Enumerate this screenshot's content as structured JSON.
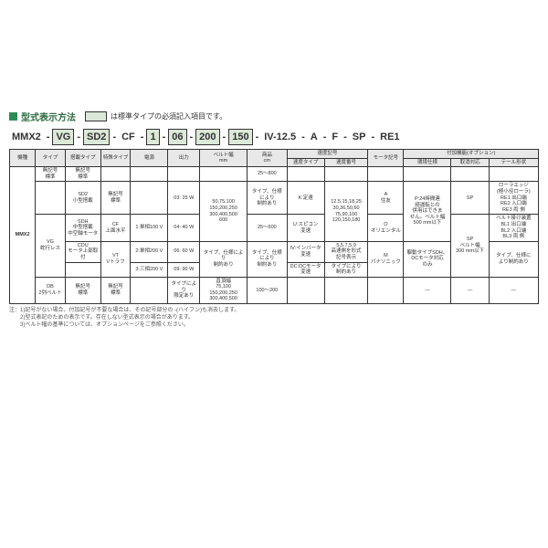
{
  "title": "型式表示方法",
  "legend_text": "は標準タイプの必須記入項目です。",
  "designation": [
    "MMX2",
    "VG",
    "SD2",
    "CF",
    "1",
    "06",
    "200",
    "150",
    "IV-12.5",
    "A",
    "F",
    "SP",
    "RE1"
  ],
  "highlight_idx": [
    1,
    2,
    4,
    5,
    6,
    7
  ],
  "headers_top": [
    "機種",
    "タイプ",
    "搭載タイプ",
    "特殊タイプ",
    "電源",
    "出力",
    "ベルト幅\nmm",
    "商品\ncm"
  ],
  "speed_group": "速度記号",
  "speed_sub": [
    "速度タイプ",
    "速度番号"
  ],
  "motor_h": "モータ記号",
  "option_group": "付加機能(オプション)",
  "option_sub": [
    "環境仕様",
    "取消対応",
    "テール形状"
  ],
  "rows": {
    "r1": [
      "",
      "無記号\n標準",
      "無記号\n標準",
      "",
      "",
      "",
      "",
      "25～800",
      "",
      "",
      "",
      "",
      "",
      ""
    ],
    "r2": [
      "",
      "",
      "SD2\n小型搭載",
      "無記号\n標準",
      "",
      "03: 25 W",
      "50,75,100\n150,200,250\n300,400,500\n600",
      "タイプ、仕様\nにより\n制約あり",
      "K:定速",
      "12.5,15,18,25\n30,36,50,60\n75,90,100\n120,150,180",
      "A\n住友",
      "P:24時間連\n続運転との\n併用はできま\nせん。ベルト幅\n500 mm以下",
      "SP",
      "ローラエッジ\n(極小径ローラ)\nRE1 出口端\nRE2 入口端\nRE3 両 側"
    ],
    "r3": [
      "MMX2",
      "VG\n蛇行レス",
      "SDH\n中型搭載\n中空軸モータ",
      "CF\n上面水平",
      "1:単相100 V",
      "04: 40 W",
      "",
      "25～600",
      "U:スピコン\n変速",
      "",
      "O\nオリエンタル",
      "",
      "SP\nベルト幅\n300 mm以下",
      "ベルト掛け装置\nBL1 出口端\nBL2 入口端\nBL3 両 側"
    ],
    "r4": [
      "",
      "",
      "CDU\nモータ上部取付",
      "VT\nVトラフ",
      "2:単相200 V",
      "06: 60 W",
      "タイプ、仕様により\n制約あり",
      "タイプ、仕様\nにより\n制約あり",
      "IV:インバータ\n変速",
      "5,5.7,5.9\n高速側を形式\n記号表示",
      "M\nパナソニック",
      "駆動タイプSDH、\nDCモータ対応\nのみ",
      "",
      "タイプ、仕様に\nより制約あり"
    ],
    "r5": [
      "",
      "",
      "",
      "",
      "3:三相200 V",
      "09: 90 W",
      "",
      "",
      "DC:DCモータ\n変速",
      "タイプにより\n制約あり",
      "",
      "",
      "",
      ""
    ],
    "r6": [
      "",
      "DB\n2列ベルト",
      "無記号\n標準",
      "無記号\n標準",
      "",
      "タイプにより\n限定あり",
      "直頂幅\n75,100\n150,200,250\n300,400,500",
      "100～200",
      "",
      "",
      "",
      "—",
      "—",
      "—"
    ]
  },
  "notes": [
    "注：1)記号がない場合、付加記号が不要な場合は、その記号部分の -(ハイフン)も消去します。",
    "　　2)型式表記のための表示です。存在しない型式表示の場合があります。",
    "　　3)ベルト幅の基準については、オプションページをご参照ください。"
  ],
  "colors": {
    "accent": "#2e8b57",
    "highlight_bg": "#dce8d8",
    "border": "#333333"
  }
}
